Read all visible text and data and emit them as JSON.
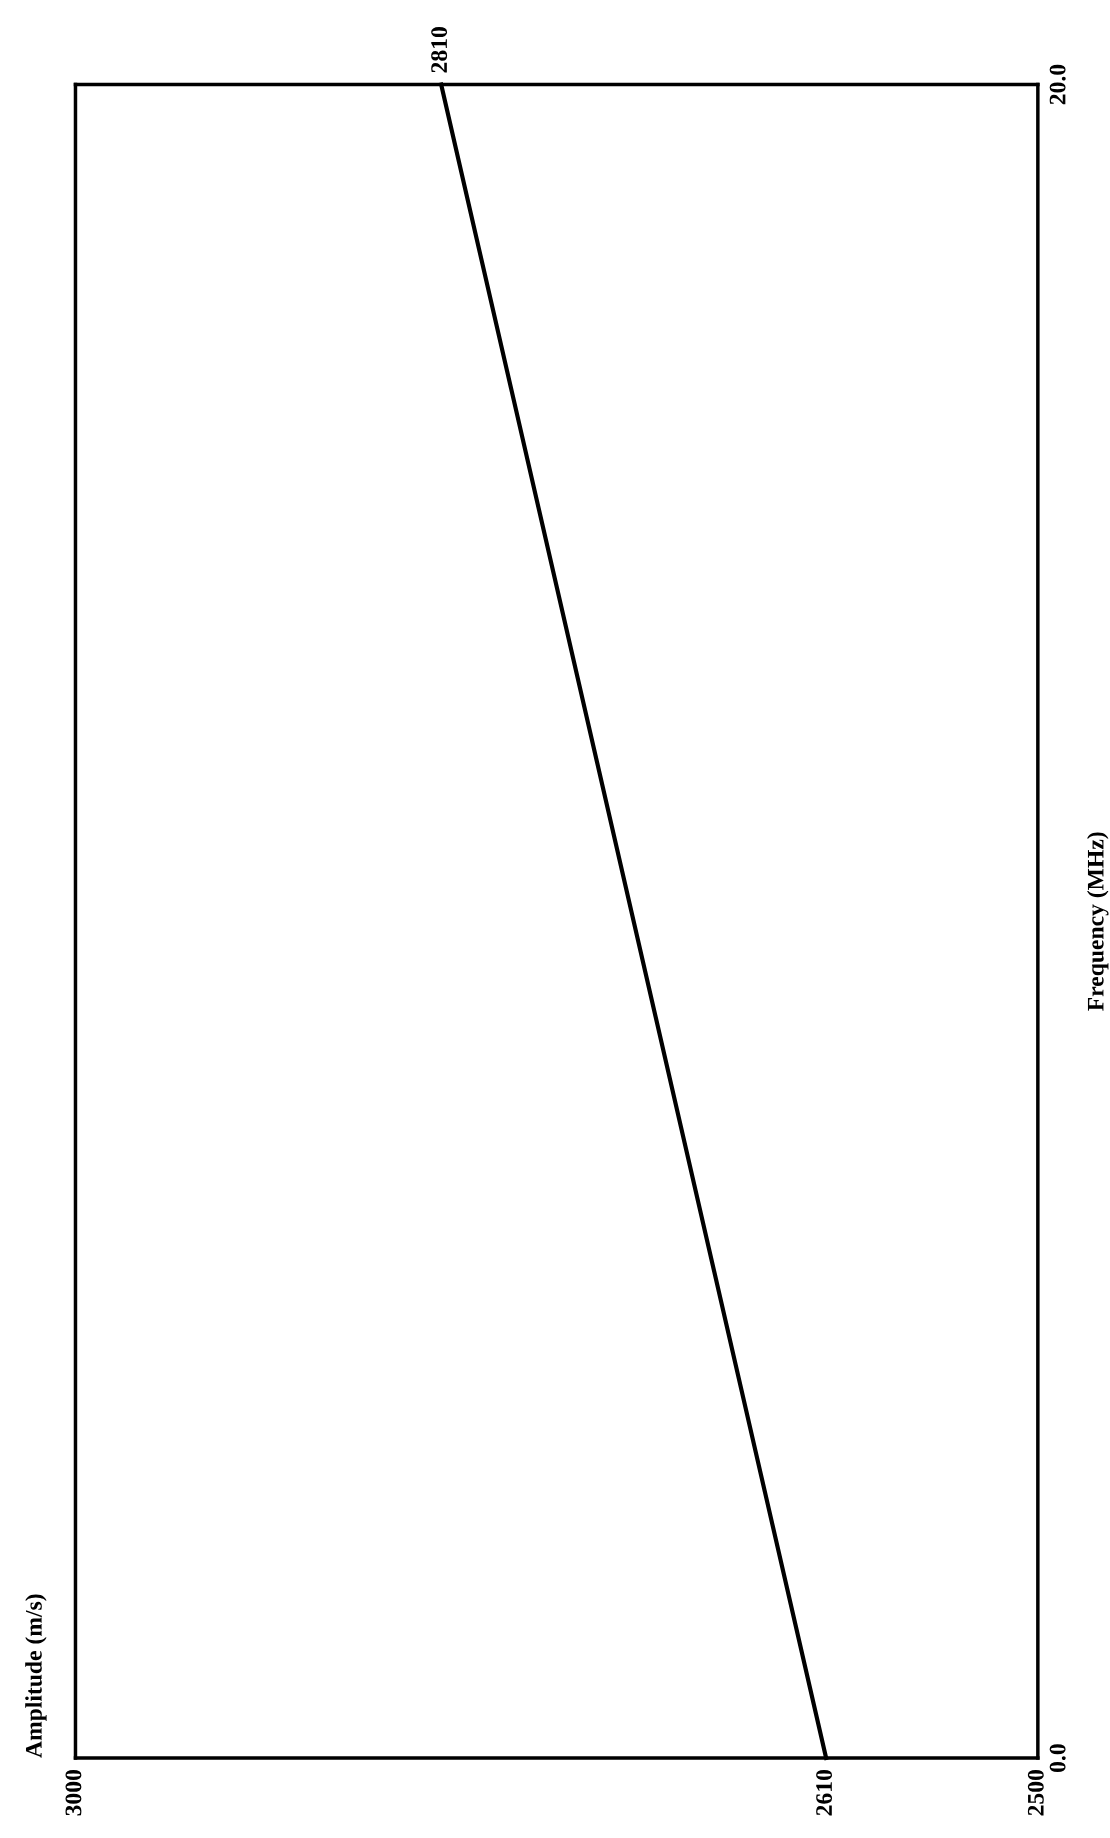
{
  "chart_data": {
    "type": "line",
    "ylabel": "Frequency (MHz)",
    "series": [
      {
        "color": "#000000",
        "x": [
          2610,
          2810
        ],
        "values": [
          0,
          20
        ]
      }
    ],
    "xlim": [
      3000,
      2500
    ],
    "xticks": [
      3000,
      2610,
      2500
    ],
    "ylim": [
      0,
      20
    ],
    "yticks": [
      {
        "value": 0,
        "label": "0.0"
      },
      {
        "value": 20,
        "label": "20.0"
      }
    ],
    "annotations": [
      {
        "text": "2810",
        "x": 2810,
        "y": 20
      },
      "Amplitude (m/s)"
    ],
    "grid": false,
    "legend": false,
    "marker": "none",
    "line_style": "solid"
  }
}
